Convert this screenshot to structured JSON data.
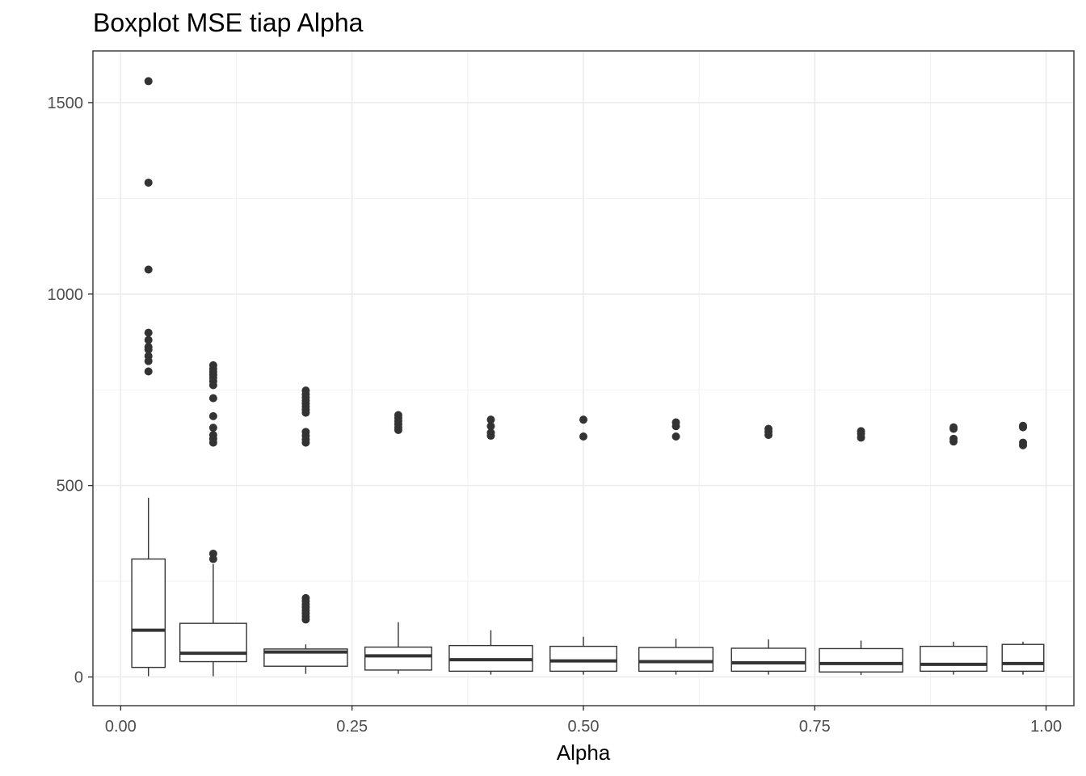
{
  "chart_data": {
    "type": "boxplot",
    "title": "Boxplot MSE tiap Alpha",
    "xlabel": "Alpha",
    "ylabel": "",
    "xlim": [
      -0.03,
      1.03
    ],
    "ylim": [
      -75,
      1635
    ],
    "x_ticks": [
      {
        "value": 0.0,
        "label": "0.00"
      },
      {
        "value": 0.25,
        "label": "0.25"
      },
      {
        "value": 0.5,
        "label": "0.50"
      },
      {
        "value": 0.75,
        "label": "0.75"
      },
      {
        "value": 1.0,
        "label": "1.00"
      }
    ],
    "y_ticks": [
      {
        "value": 0,
        "label": "0"
      },
      {
        "value": 500,
        "label": "500"
      },
      {
        "value": 1000,
        "label": "1000"
      },
      {
        "value": 1500,
        "label": "1500"
      }
    ],
    "grid": true,
    "boxes": [
      {
        "x": 0.03,
        "width": 0.036,
        "q1": 25,
        "median": 122,
        "q3": 308,
        "whisker_low": 2,
        "whisker_high": 468,
        "outliers": [
          1556,
          1291,
          1064,
          899,
          880,
          862,
          855,
          838,
          825,
          798
        ]
      },
      {
        "x": 0.1,
        "width": 0.072,
        "q1": 40,
        "median": 62,
        "q3": 140,
        "whisker_low": 2,
        "whisker_high": 295,
        "outliers": [
          322,
          308,
          814,
          805,
          797,
          789,
          781,
          772,
          762,
          728,
          681,
          651,
          632,
          622,
          612
        ]
      },
      {
        "x": 0.2,
        "width": 0.09,
        "q1": 28,
        "median": 65,
        "q3": 73,
        "whisker_low": 8,
        "whisker_high": 85,
        "outliers": [
          150,
          158,
          166,
          174,
          182,
          190,
          198,
          206,
          612,
          620,
          630,
          640,
          690,
          698,
          706,
          714,
          722,
          730,
          738,
          748
        ]
      },
      {
        "x": 0.3,
        "width": 0.072,
        "q1": 18,
        "median": 55,
        "q3": 78,
        "whisker_low": 8,
        "whisker_high": 143,
        "outliers": [
          645,
          652,
          660,
          668,
          676,
          684
        ]
      },
      {
        "x": 0.4,
        "width": 0.09,
        "q1": 15,
        "median": 45,
        "q3": 82,
        "whisker_low": 6,
        "whisker_high": 122,
        "outliers": [
          630,
          638,
          655,
          672
        ]
      },
      {
        "x": 0.5,
        "width": 0.072,
        "q1": 15,
        "median": 42,
        "q3": 80,
        "whisker_low": 6,
        "whisker_high": 105,
        "outliers": [
          628,
          672
        ]
      },
      {
        "x": 0.6,
        "width": 0.08,
        "q1": 15,
        "median": 40,
        "q3": 77,
        "whisker_low": 6,
        "whisker_high": 100,
        "outliers": [
          628,
          655,
          665
        ]
      },
      {
        "x": 0.7,
        "width": 0.08,
        "q1": 15,
        "median": 37,
        "q3": 75,
        "whisker_low": 6,
        "whisker_high": 98,
        "outliers": [
          632,
          640,
          648
        ]
      },
      {
        "x": 0.8,
        "width": 0.09,
        "q1": 13,
        "median": 35,
        "q3": 74,
        "whisker_low": 5,
        "whisker_high": 95,
        "outliers": [
          625,
          635,
          642
        ]
      },
      {
        "x": 0.9,
        "width": 0.072,
        "q1": 15,
        "median": 33,
        "q3": 80,
        "whisker_low": 6,
        "whisker_high": 92,
        "outliers": [
          615,
          622,
          648,
          652
        ]
      },
      {
        "x": 0.975,
        "width": 0.045,
        "q1": 15,
        "median": 35,
        "q3": 85,
        "whisker_low": 6,
        "whisker_high": 92,
        "outliers": [
          605,
          612,
          652,
          656
        ]
      }
    ]
  }
}
